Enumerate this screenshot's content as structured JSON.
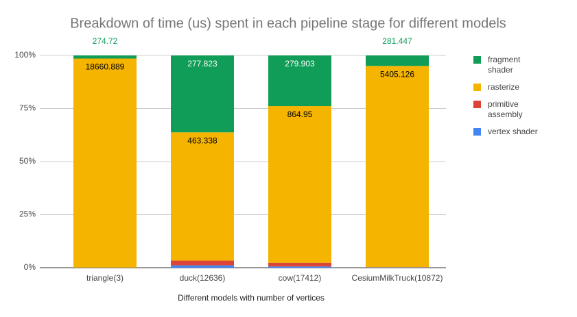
{
  "chart_data": {
    "type": "bar",
    "stacking": "percent",
    "title": "Breakdown of time (us) spent in each pipeline stage for different models",
    "x_label": "Different models with number of vertices",
    "categories": [
      "triangle(3)",
      "duck(12636)",
      "cow(17412)",
      "CesiumMilkTruck(10872)"
    ],
    "series": [
      {
        "name": "vertex shader",
        "color": "#4285f4",
        "values": [
          6.423,
          8.448,
          6.808,
          6.93
        ]
      },
      {
        "name": "primitive assembly",
        "color": "#db4437",
        "values": [
          4.508,
          17.392,
          20.679,
          6.462
        ]
      },
      {
        "name": "rasterize",
        "color": "#f4b400",
        "values": [
          18660.889,
          463.338,
          864.95,
          5405.126
        ]
      },
      {
        "name": "fragment shader",
        "color": "#0f9d58",
        "values": [
          274.72,
          277.823,
          279.903,
          281.447
        ]
      }
    ],
    "ylim": [
      0,
      100
    ],
    "yticks": [
      {
        "value": 0,
        "label": "0%"
      },
      {
        "value": 25,
        "label": "25%"
      },
      {
        "value": 50,
        "label": "50%"
      },
      {
        "value": 75,
        "label": "75%"
      },
      {
        "value": 100,
        "label": "100%"
      }
    ],
    "grid": true,
    "legend": "right"
  }
}
